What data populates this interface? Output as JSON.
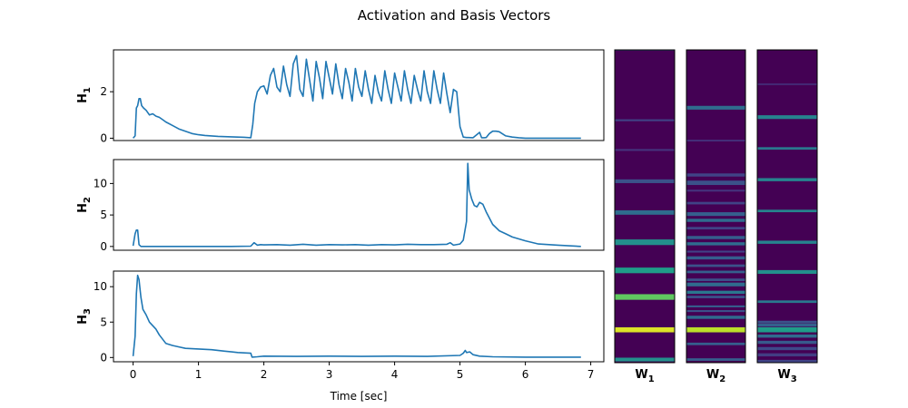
{
  "figure": {
    "title": "Activation and Basis Vectors",
    "xlabel": "Time [sec]",
    "xticks": [
      "0",
      "1",
      "2",
      "3",
      "4",
      "5",
      "6",
      "7"
    ]
  },
  "chart_data": [
    {
      "type": "line",
      "ylabel": "H",
      "ylabel_sub": "1",
      "xlim": [
        -0.3,
        7.2
      ],
      "ylim": [
        -0.1,
        3.8
      ],
      "yticks": [
        0,
        2
      ],
      "color": "#1f77b4",
      "series": [
        {
          "x": [
            0.0,
            0.03,
            0.05,
            0.07,
            0.09,
            0.11,
            0.13,
            0.16,
            0.2,
            0.25,
            0.3,
            0.35,
            0.4,
            0.45,
            0.5,
            0.6,
            0.7,
            0.8,
            0.9,
            1.0,
            1.1,
            1.2,
            1.3,
            1.5,
            1.7,
            1.8,
            1.83,
            1.86,
            1.9,
            1.95,
            2.0,
            2.05,
            2.1,
            2.15,
            2.2,
            2.25,
            2.3,
            2.35,
            2.4,
            2.45,
            2.5,
            2.55,
            2.6,
            2.65,
            2.7,
            2.75,
            2.8,
            2.85,
            2.9,
            2.95,
            3.0,
            3.05,
            3.1,
            3.15,
            3.2,
            3.25,
            3.3,
            3.35,
            3.4,
            3.45,
            3.5,
            3.55,
            3.6,
            3.65,
            3.7,
            3.75,
            3.8,
            3.85,
            3.9,
            3.95,
            4.0,
            4.05,
            4.1,
            4.15,
            4.2,
            4.25,
            4.3,
            4.35,
            4.4,
            4.45,
            4.5,
            4.55,
            4.6,
            4.65,
            4.7,
            4.75,
            4.8,
            4.85,
            4.9,
            4.95,
            5.0,
            5.05,
            5.1,
            5.13,
            5.2,
            5.3,
            5.33,
            5.37,
            5.4,
            5.45,
            5.5,
            5.55,
            5.6,
            5.7,
            5.8,
            5.9,
            6.0,
            6.2,
            6.5,
            6.85
          ],
          "y": [
            0.0,
            0.1,
            1.3,
            1.4,
            1.7,
            1.7,
            1.4,
            1.3,
            1.2,
            1.0,
            1.05,
            0.95,
            0.9,
            0.8,
            0.7,
            0.55,
            0.4,
            0.3,
            0.2,
            0.15,
            0.12,
            0.1,
            0.08,
            0.06,
            0.04,
            0.02,
            0.6,
            1.5,
            2.0,
            2.2,
            2.25,
            1.9,
            2.7,
            3.0,
            2.2,
            2.0,
            3.1,
            2.3,
            1.8,
            3.2,
            3.55,
            2.1,
            1.8,
            3.4,
            2.5,
            1.6,
            3.3,
            2.6,
            1.7,
            3.3,
            2.6,
            1.9,
            3.2,
            2.3,
            1.7,
            3.0,
            2.4,
            1.6,
            3.0,
            2.2,
            1.8,
            2.9,
            2.1,
            1.5,
            2.7,
            2.0,
            1.6,
            2.9,
            2.1,
            1.5,
            2.8,
            2.2,
            1.6,
            2.9,
            2.1,
            1.5,
            2.7,
            2.1,
            1.6,
            2.9,
            2.0,
            1.5,
            2.9,
            2.1,
            1.5,
            2.8,
            1.9,
            1.1,
            2.1,
            2.0,
            0.5,
            0.05,
            0.03,
            0.03,
            0.02,
            0.25,
            0.02,
            0.02,
            0.03,
            0.2,
            0.3,
            0.3,
            0.28,
            0.1,
            0.05,
            0.02,
            0.0,
            0.0,
            0.0,
            0.0
          ]
        }
      ]
    },
    {
      "type": "line",
      "ylabel": "H",
      "ylabel_sub": "2",
      "xlim": [
        -0.3,
        7.2
      ],
      "ylim": [
        -0.6,
        13.8
      ],
      "yticks": [
        0,
        5,
        10
      ],
      "color": "#1f77b4",
      "series": [
        {
          "x": [
            0.0,
            0.03,
            0.05,
            0.07,
            0.09,
            0.12,
            0.2,
            0.5,
            1.0,
            1.5,
            1.8,
            1.85,
            1.9,
            1.95,
            2.0,
            2.2,
            2.4,
            2.6,
            2.8,
            3.0,
            3.2,
            3.4,
            3.6,
            3.8,
            4.0,
            4.2,
            4.4,
            4.6,
            4.8,
            4.85,
            4.9,
            5.0,
            5.05,
            5.1,
            5.12,
            5.14,
            5.18,
            5.22,
            5.26,
            5.3,
            5.35,
            5.4,
            5.5,
            5.6,
            5.7,
            5.8,
            6.0,
            6.2,
            6.5,
            6.85
          ],
          "y": [
            0.1,
            2.0,
            2.6,
            2.6,
            0.3,
            0.0,
            0.0,
            0.0,
            0.0,
            0.0,
            0.05,
            0.6,
            0.2,
            0.3,
            0.25,
            0.3,
            0.2,
            0.35,
            0.2,
            0.3,
            0.25,
            0.3,
            0.2,
            0.3,
            0.25,
            0.35,
            0.3,
            0.3,
            0.35,
            0.6,
            0.2,
            0.4,
            1.0,
            4.0,
            13.2,
            9.0,
            7.5,
            6.5,
            6.3,
            7.0,
            6.7,
            5.5,
            3.5,
            2.5,
            2.0,
            1.5,
            0.9,
            0.4,
            0.2,
            0.0
          ]
        }
      ]
    },
    {
      "type": "line",
      "ylabel": "H",
      "ylabel_sub": "3",
      "xlim": [
        -0.3,
        7.2
      ],
      "ylim": [
        -0.6,
        12.2
      ],
      "yticks": [
        0,
        5,
        10
      ],
      "color": "#1f77b4",
      "series": [
        {
          "x": [
            0.0,
            0.03,
            0.05,
            0.07,
            0.09,
            0.12,
            0.15,
            0.2,
            0.25,
            0.3,
            0.35,
            0.4,
            0.5,
            0.6,
            0.7,
            0.8,
            1.0,
            1.2,
            1.4,
            1.6,
            1.8,
            1.82,
            1.9,
            2.0,
            2.5,
            3.0,
            3.5,
            4.0,
            4.5,
            5.0,
            5.05,
            5.08,
            5.1,
            5.15,
            5.2,
            5.3,
            5.5,
            6.0,
            6.5,
            6.85
          ],
          "y": [
            0.2,
            3.0,
            9.0,
            11.6,
            11.0,
            8.5,
            6.8,
            6.0,
            5.0,
            4.5,
            4.0,
            3.2,
            2.0,
            1.7,
            1.5,
            1.3,
            1.2,
            1.1,
            0.9,
            0.7,
            0.6,
            0.05,
            0.1,
            0.2,
            0.15,
            0.2,
            0.15,
            0.2,
            0.15,
            0.3,
            0.6,
            1.0,
            0.7,
            0.8,
            0.4,
            0.2,
            0.1,
            0.05,
            0.05,
            0.05
          ]
        }
      ]
    }
  ],
  "basis_labels": [
    {
      "main": "W",
      "sub": "1"
    },
    {
      "main": "W",
      "sub": "2"
    },
    {
      "main": "W",
      "sub": "3"
    }
  ],
  "heatmaps": [
    {
      "colorscale": "viridis",
      "bands": [
        {
          "pos": 0.0,
          "w": 0.004,
          "v": 0.35
        },
        {
          "pos": 0.225,
          "w": 0.006,
          "v": 0.2
        },
        {
          "pos": 0.32,
          "w": 0.006,
          "v": 0.15
        },
        {
          "pos": 0.42,
          "w": 0.012,
          "v": 0.25
        },
        {
          "pos": 0.52,
          "w": 0.014,
          "v": 0.35
        },
        {
          "pos": 0.615,
          "w": 0.018,
          "v": 0.5
        },
        {
          "pos": 0.705,
          "w": 0.018,
          "v": 0.55
        },
        {
          "pos": 0.79,
          "w": 0.018,
          "v": 0.75
        },
        {
          "pos": 0.895,
          "w": 0.016,
          "v": 0.95
        },
        {
          "pos": 0.99,
          "w": 0.012,
          "v": 0.5
        }
      ]
    },
    {
      "colorscale": "viridis",
      "bands": [
        {
          "pos": 0.185,
          "w": 0.012,
          "v": 0.35
        },
        {
          "pos": 0.29,
          "w": 0.005,
          "v": 0.15
        },
        {
          "pos": 0.4,
          "w": 0.01,
          "v": 0.2
        },
        {
          "pos": 0.425,
          "w": 0.014,
          "v": 0.25
        },
        {
          "pos": 0.45,
          "w": 0.006,
          "v": 0.15
        },
        {
          "pos": 0.49,
          "w": 0.008,
          "v": 0.2
        },
        {
          "pos": 0.525,
          "w": 0.012,
          "v": 0.3
        },
        {
          "pos": 0.545,
          "w": 0.01,
          "v": 0.35
        },
        {
          "pos": 0.57,
          "w": 0.008,
          "v": 0.2
        },
        {
          "pos": 0.6,
          "w": 0.01,
          "v": 0.3
        },
        {
          "pos": 0.62,
          "w": 0.01,
          "v": 0.35
        },
        {
          "pos": 0.645,
          "w": 0.006,
          "v": 0.2
        },
        {
          "pos": 0.665,
          "w": 0.01,
          "v": 0.3
        },
        {
          "pos": 0.69,
          "w": 0.008,
          "v": 0.25
        },
        {
          "pos": 0.71,
          "w": 0.008,
          "v": 0.3
        },
        {
          "pos": 0.735,
          "w": 0.008,
          "v": 0.25
        },
        {
          "pos": 0.75,
          "w": 0.012,
          "v": 0.35
        },
        {
          "pos": 0.775,
          "w": 0.01,
          "v": 0.4
        },
        {
          "pos": 0.79,
          "w": 0.008,
          "v": 0.25
        },
        {
          "pos": 0.82,
          "w": 0.006,
          "v": 0.3
        },
        {
          "pos": 0.835,
          "w": 0.006,
          "v": 0.25
        },
        {
          "pos": 0.855,
          "w": 0.01,
          "v": 0.35
        },
        {
          "pos": 0.895,
          "w": 0.016,
          "v": 0.9
        },
        {
          "pos": 0.94,
          "w": 0.008,
          "v": 0.3
        },
        {
          "pos": 0.99,
          "w": 0.008,
          "v": 0.3
        }
      ]
    },
    {
      "colorscale": "viridis",
      "bands": [
        {
          "pos": 0.11,
          "w": 0.004,
          "v": 0.15
        },
        {
          "pos": 0.215,
          "w": 0.012,
          "v": 0.45
        },
        {
          "pos": 0.315,
          "w": 0.008,
          "v": 0.4
        },
        {
          "pos": 0.415,
          "w": 0.01,
          "v": 0.45
        },
        {
          "pos": 0.515,
          "w": 0.008,
          "v": 0.45
        },
        {
          "pos": 0.615,
          "w": 0.01,
          "v": 0.45
        },
        {
          "pos": 0.71,
          "w": 0.012,
          "v": 0.5
        },
        {
          "pos": 0.805,
          "w": 0.008,
          "v": 0.4
        },
        {
          "pos": 0.87,
          "w": 0.008,
          "v": 0.25
        },
        {
          "pos": 0.88,
          "w": 0.01,
          "v": 0.3
        },
        {
          "pos": 0.895,
          "w": 0.016,
          "v": 0.55
        },
        {
          "pos": 0.915,
          "w": 0.01,
          "v": 0.35
        },
        {
          "pos": 0.935,
          "w": 0.01,
          "v": 0.28
        },
        {
          "pos": 0.955,
          "w": 0.01,
          "v": 0.22
        },
        {
          "pos": 0.975,
          "w": 0.01,
          "v": 0.18
        },
        {
          "pos": 0.995,
          "w": 0.008,
          "v": 0.2
        }
      ]
    }
  ]
}
